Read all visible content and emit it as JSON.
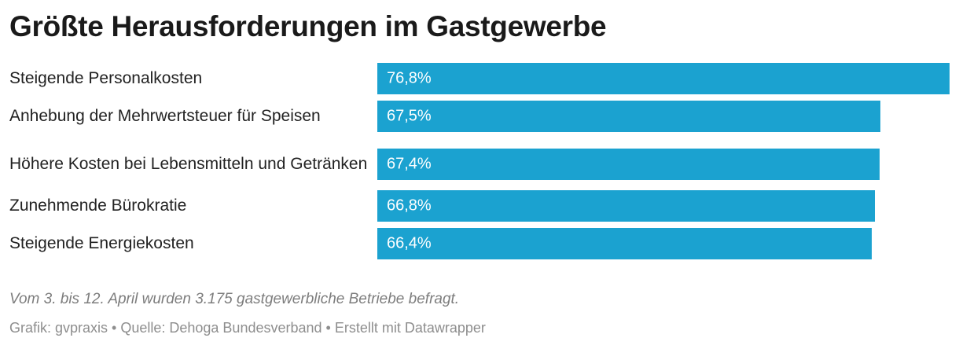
{
  "chart_data": {
    "type": "bar",
    "orientation": "horizontal",
    "title": "Größte Herausforderungen im Gastgewerbe",
    "categories": [
      "Steigende Personalkosten",
      "Anhebung der Mehrwertsteuer für Speisen",
      "Höhere Kosten bei Lebensmitteln und Getränken",
      "Zunehmende Bürokratie",
      "Steigende Energiekosten"
    ],
    "values": [
      76.8,
      67.5,
      67.4,
      66.8,
      66.4
    ],
    "value_labels": [
      "76,8%",
      "67,5%",
      "67,4%",
      "66,8%",
      "66,4%"
    ],
    "unit": "%",
    "xlim": [
      0,
      76.8
    ],
    "grid": false,
    "legend": "none",
    "bar_color": "#1ba2d0",
    "value_label_color": "#ffffff",
    "notes": "Vom 3. bis 12. April wurden 3.175 gastgewerbliche Betriebe befragt.",
    "footer": "Grafik: gvpraxis • Quelle: Dehoga Bundesverband • Erstellt mit Datawrapper"
  }
}
